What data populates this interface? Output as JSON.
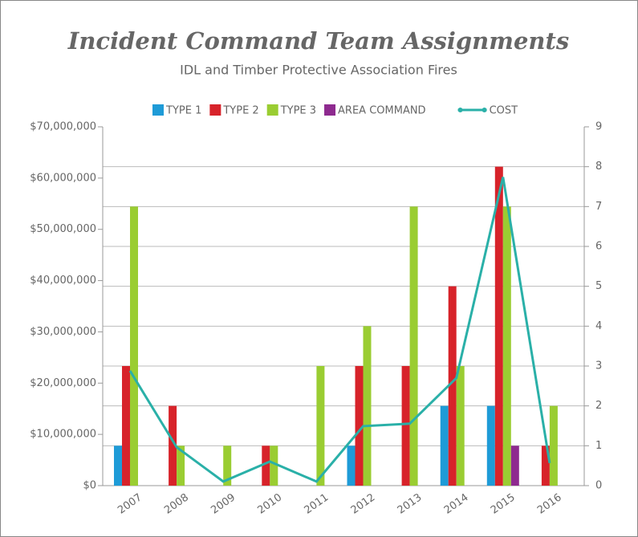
{
  "chart_data": {
    "type": "bar",
    "title": "Incident Command Team Assignments",
    "subtitle": "IDL and Timber Protective Association Fires",
    "categories": [
      "2007",
      "2008",
      "2009",
      "2010",
      "2011",
      "2012",
      "2013",
      "2014",
      "2015",
      "2016"
    ],
    "series": [
      {
        "name": "TYPE 1",
        "color": "#1e9bd7",
        "axis": "y2",
        "values": [
          1,
          0,
          0,
          0,
          0,
          1,
          0,
          2,
          2,
          0
        ]
      },
      {
        "name": "TYPE 2",
        "color": "#d7232a",
        "axis": "y2",
        "values": [
          3,
          2,
          0,
          1,
          0,
          3,
          3,
          5,
          8,
          1
        ]
      },
      {
        "name": "TYPE 3",
        "color": "#9acd32",
        "axis": "y2",
        "values": [
          7,
          1,
          1,
          1,
          3,
          4,
          7,
          3,
          7,
          2
        ]
      },
      {
        "name": "AREA COMMAND",
        "color": "#8e2a8f",
        "axis": "y2",
        "values": [
          0,
          0,
          0,
          0,
          0,
          0,
          0,
          0,
          1,
          0
        ]
      },
      {
        "name": "COST",
        "color": "#2ab0a8",
        "type": "line",
        "values": [
          22400000,
          7500000,
          800000,
          4700000,
          800000,
          11600000,
          12100000,
          21000000,
          60200000,
          4400000
        ]
      }
    ],
    "ylim": [
      0,
      70000000
    ],
    "yticks": [
      {
        "value": 0,
        "label": "$0"
      },
      {
        "value": 10000000,
        "label": "$10,000,000"
      },
      {
        "value": 20000000,
        "label": "$20,000,000"
      },
      {
        "value": 30000000,
        "label": "$30,000,000"
      },
      {
        "value": 40000000,
        "label": "$40,000,000"
      },
      {
        "value": 50000000,
        "label": "$50,000,000"
      },
      {
        "value": 60000000,
        "label": "$60,000,000"
      },
      {
        "value": 70000000,
        "label": "$70,000,000"
      }
    ],
    "y2lim": [
      0,
      9
    ],
    "y2ticks": [
      0,
      1,
      2,
      3,
      4,
      5,
      6,
      7,
      8,
      9
    ],
    "grid": true,
    "legend": "top"
  }
}
